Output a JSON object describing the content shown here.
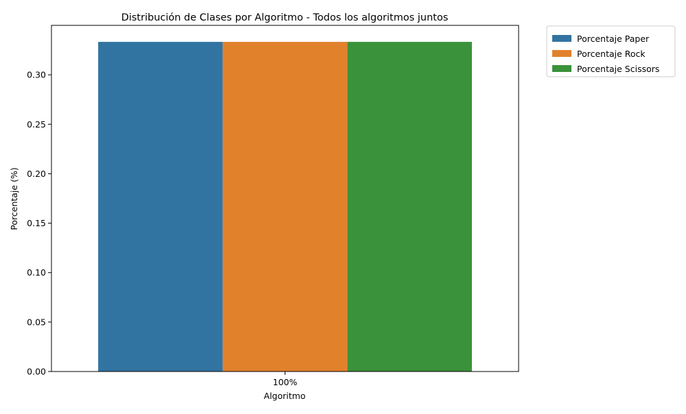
{
  "chart_data": {
    "type": "bar",
    "title": "Distribución de Clases por Algoritmo - Todos los algoritmos juntos",
    "xlabel": "Algoritmo",
    "ylabel": "Porcentaje (%)",
    "categories": [
      "100%"
    ],
    "series": [
      {
        "name": "Porcentaje Paper",
        "values": [
          0.3333
        ],
        "color": "#3274a1"
      },
      {
        "name": "Porcentaje Rock",
        "values": [
          0.3333
        ],
        "color": "#e1812c"
      },
      {
        "name": "Porcentaje Scissors",
        "values": [
          0.3333
        ],
        "color": "#3a923a"
      }
    ],
    "ylim": [
      0,
      0.35
    ],
    "yticks": [
      0.0,
      0.05,
      0.1,
      0.15,
      0.2,
      0.25,
      0.3
    ],
    "ytick_labels": [
      "0.00",
      "0.05",
      "0.10",
      "0.15",
      "0.20",
      "0.25",
      "0.30"
    ],
    "grid": false,
    "legend_position": "outside-top-right"
  }
}
